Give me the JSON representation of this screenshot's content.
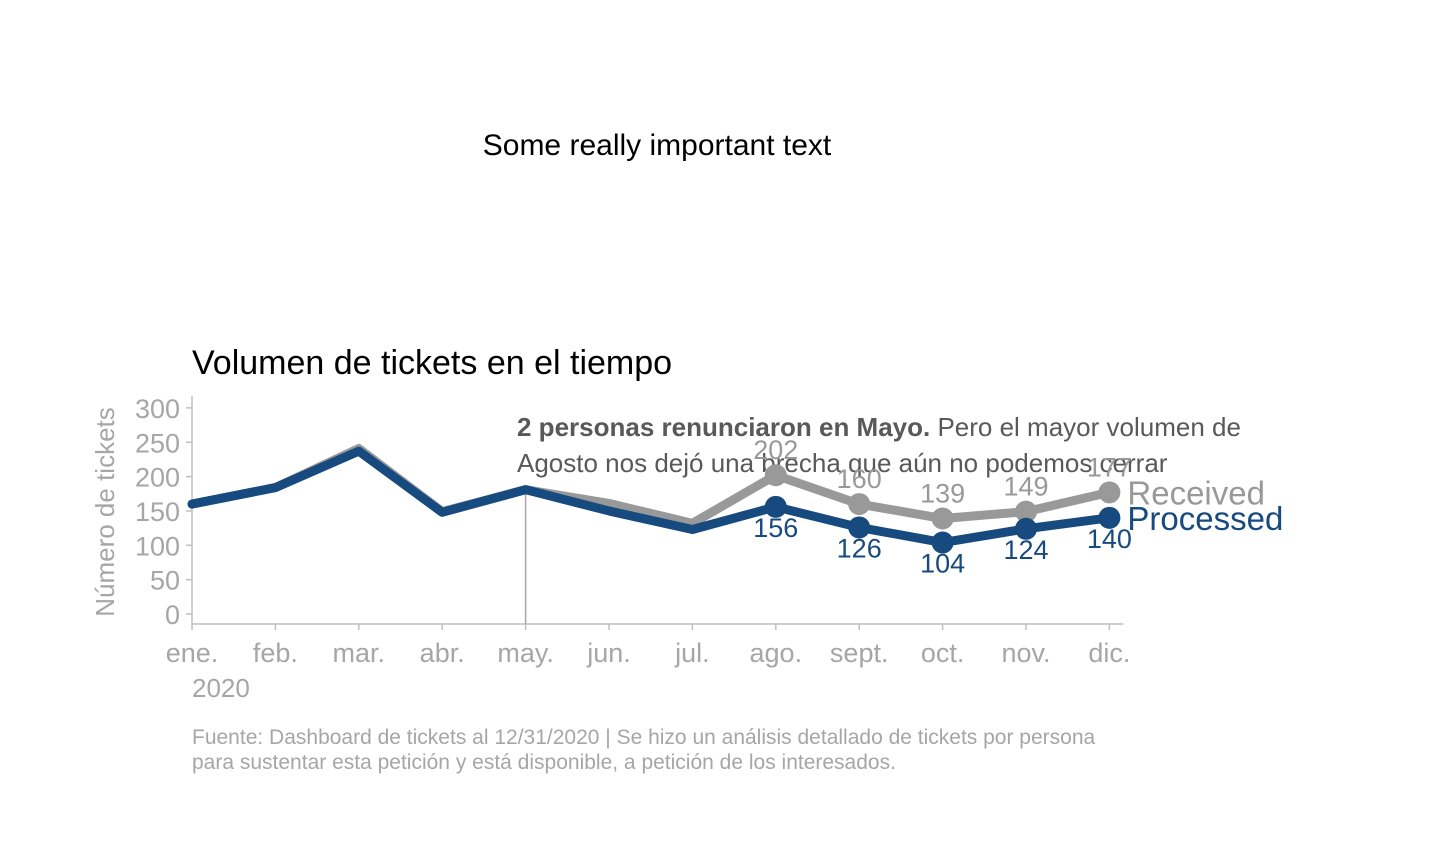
{
  "headline": "Some really important text",
  "annotation": {
    "bold": "2 personas renunciaron en Mayo.",
    "rest_line1": " Pero el mayor volumen de",
    "line2": "Agosto nos dejó una brecha que aún no podemos cerrar"
  },
  "source": {
    "line1": "Fuente: Dashboard de tickets al 12/31/2020 | Se hizo un análisis detallado de tickets por persona",
    "line2": "para sustentar esta petición y está disponible, a petición de los interesados."
  },
  "colors": {
    "received": "#999999",
    "processed": "#174A7E",
    "axis_text": "#A6A6A6",
    "annotation_text": "#595959",
    "axis_line": "#BFBFBF"
  },
  "chart_data": {
    "type": "line",
    "title": "Volumen de tickets en el tiempo",
    "ylabel": "Número de tickets",
    "xlabel": "",
    "year_label": "2020",
    "ylim": [
      0,
      300
    ],
    "yticks": [
      0,
      50,
      100,
      150,
      200,
      250,
      300
    ],
    "grid": false,
    "legend": "direct labels at right end",
    "categories": [
      "ene.",
      "feb.",
      "mar.",
      "abr.",
      "may.",
      "jun.",
      "jul.",
      "ago.",
      "sept.",
      "oct.",
      "nov.",
      "dic."
    ],
    "reference_line_at": "may.",
    "series": [
      {
        "name": "Received",
        "values": [
          160,
          184,
          241,
          149,
          181,
          161,
          132,
          202,
          160,
          139,
          149,
          177
        ],
        "labeled_from_index": 7
      },
      {
        "name": "Processed",
        "values": [
          160,
          184,
          237,
          148,
          181,
          150,
          123,
          156,
          126,
          104,
          124,
          140
        ],
        "labeled_from_index": 7
      }
    ]
  }
}
